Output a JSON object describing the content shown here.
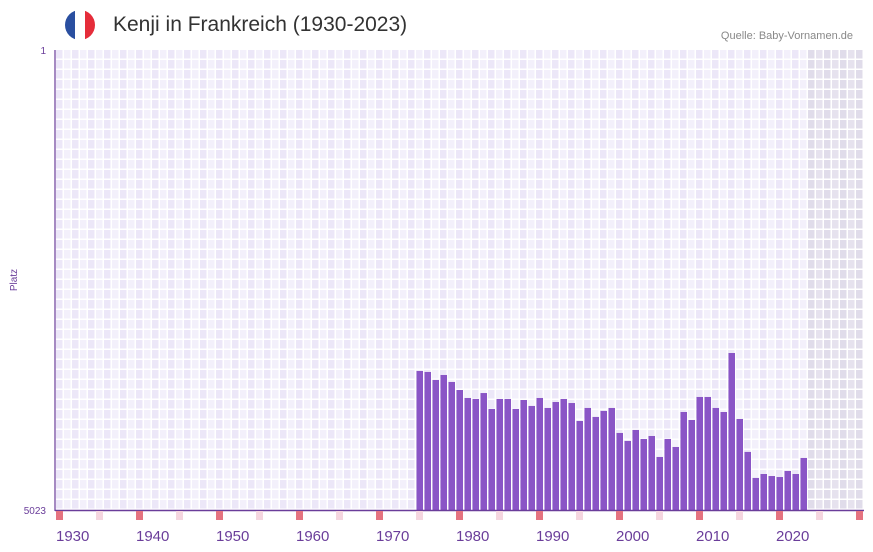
{
  "header": {
    "title": "Kenji in Frankreich (1930-2023)",
    "source": "Quelle: Baby-Vornamen.de",
    "flag_colors": [
      "#2a4fa0",
      "#ffffff",
      "#e52d3a"
    ]
  },
  "colors": {
    "bar": "#8a55c6",
    "axis": "#6a3d9a",
    "marker_decade": "#e57380",
    "marker_half": "#f5d6df"
  },
  "chart_data": {
    "type": "bar",
    "title": "Kenji in Frankreich (1930-2023)",
    "xlabel": "",
    "ylabel": "Platz",
    "ylim": [
      1,
      5023
    ],
    "y_inverted": true,
    "y_ticks": [
      "1",
      "5023"
    ],
    "x_range": [
      1930,
      2030
    ],
    "forecast_from": 2024,
    "x_ticks": [
      "1930",
      "1940",
      "1950",
      "1960",
      "1970",
      "1980",
      "1990",
      "2000",
      "2010",
      "2020"
    ],
    "years": [
      1975,
      1976,
      1977,
      1978,
      1979,
      1980,
      1981,
      1982,
      1983,
      1984,
      1985,
      1986,
      1987,
      1988,
      1989,
      1990,
      1991,
      1992,
      1993,
      1994,
      1995,
      1996,
      1997,
      1998,
      1999,
      2000,
      2001,
      2002,
      2003,
      2004,
      2005,
      2006,
      2007,
      2008,
      2009,
      2010,
      2011,
      2012,
      2013,
      2014,
      2015,
      2016,
      2017,
      2018,
      2019,
      2020,
      2021,
      2022,
      2023
    ],
    "values": [
      3505,
      3516,
      3603,
      3549,
      3625,
      3713,
      3800,
      3811,
      3746,
      3920,
      3811,
      3811,
      3920,
      3822,
      3887,
      3800,
      3909,
      3844,
      3811,
      3855,
      4051,
      3909,
      4007,
      3942,
      3909,
      4182,
      4269,
      4149,
      4248,
      4215,
      4444,
      4248,
      4335,
      3953,
      4040,
      3789,
      3789,
      3909,
      3953,
      3309,
      4029,
      4389,
      4673,
      4630,
      4652,
      4663,
      4597,
      4630,
      4455
    ]
  }
}
